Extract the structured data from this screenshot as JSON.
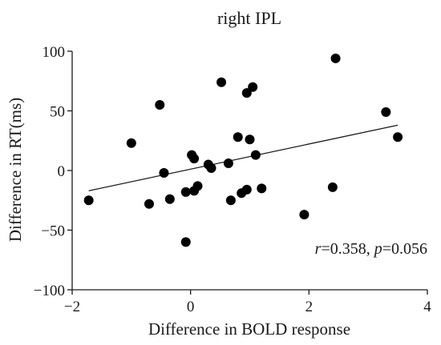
{
  "chart_data": {
    "type": "scatter",
    "title": "right IPL",
    "xlabel": "Difference in BOLD response",
    "ylabel": "Difference in RT(ms)",
    "xlim": [
      -2,
      4
    ],
    "ylim": [
      -100,
      100
    ],
    "x_ticks": [
      -2,
      0,
      2,
      4
    ],
    "x_tick_labels": [
      "−2",
      "0",
      "2",
      "4"
    ],
    "y_ticks": [
      -100,
      -50,
      0,
      50,
      100
    ],
    "y_tick_labels": [
      "−100",
      "−50",
      "0",
      "50",
      "100"
    ],
    "grid": false,
    "marker_color": "#000000",
    "points": [
      {
        "x": -1.72,
        "y": -25
      },
      {
        "x": -1.0,
        "y": 23
      },
      {
        "x": -0.7,
        "y": -28
      },
      {
        "x": -0.52,
        "y": 55
      },
      {
        "x": -0.45,
        "y": -2
      },
      {
        "x": -0.35,
        "y": -24
      },
      {
        "x": -0.08,
        "y": -60
      },
      {
        "x": -0.08,
        "y": -18
      },
      {
        "x": 0.02,
        "y": 13
      },
      {
        "x": 0.06,
        "y": 10
      },
      {
        "x": 0.06,
        "y": -17
      },
      {
        "x": 0.12,
        "y": -13
      },
      {
        "x": 0.3,
        "y": 5
      },
      {
        "x": 0.35,
        "y": 2
      },
      {
        "x": 0.52,
        "y": 74
      },
      {
        "x": 0.64,
        "y": 6
      },
      {
        "x": 0.68,
        "y": -25
      },
      {
        "x": 0.8,
        "y": 28
      },
      {
        "x": 0.86,
        "y": -19
      },
      {
        "x": 0.95,
        "y": 65
      },
      {
        "x": 0.95,
        "y": -16
      },
      {
        "x": 1.0,
        "y": 26
      },
      {
        "x": 1.05,
        "y": 70
      },
      {
        "x": 1.1,
        "y": 13
      },
      {
        "x": 1.2,
        "y": -15
      },
      {
        "x": 1.92,
        "y": -37
      },
      {
        "x": 2.4,
        "y": -14
      },
      {
        "x": 2.45,
        "y": 94
      },
      {
        "x": 3.3,
        "y": 49
      },
      {
        "x": 3.5,
        "y": 28
      }
    ],
    "fit_line": {
      "x": [
        -1.72,
        3.5
      ],
      "y": [
        -17,
        38
      ]
    },
    "annotation": {
      "r_symbol": "r",
      "r_text": "=0.358, ",
      "p_symbol": "p",
      "p_text": "=0.056"
    }
  }
}
